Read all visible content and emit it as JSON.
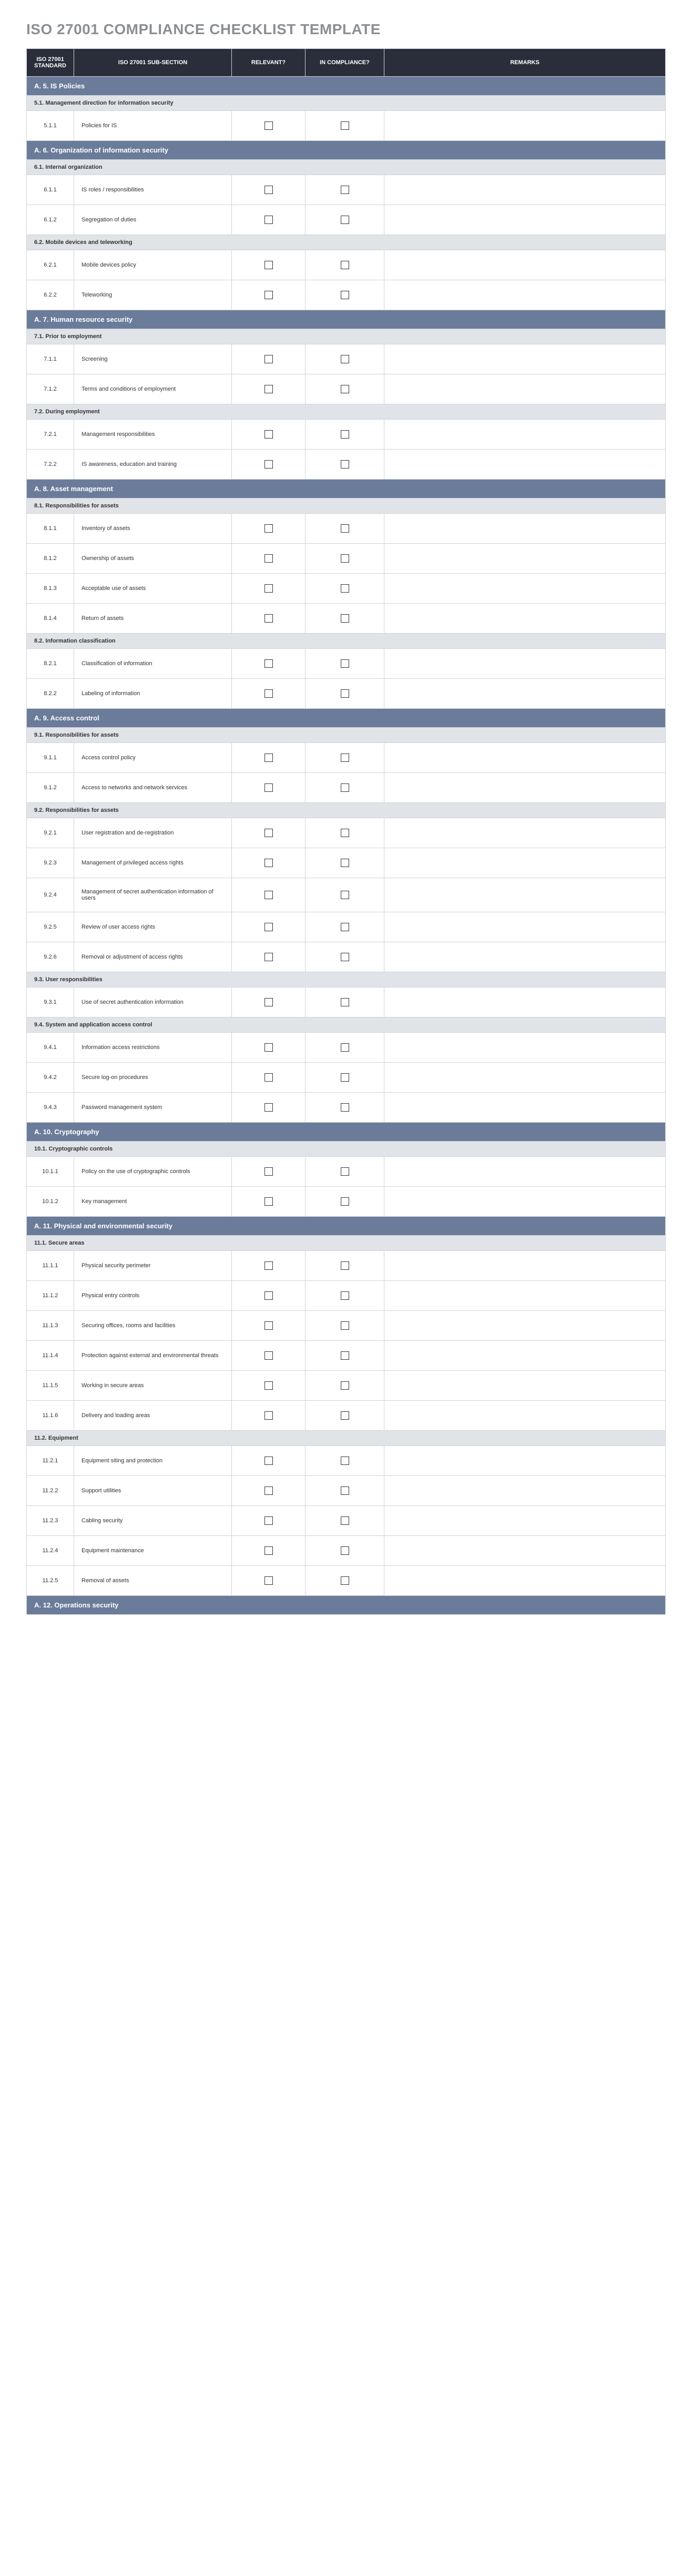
{
  "title": "ISO 27001 COMPLIANCE CHECKLIST TEMPLATE",
  "colors": {
    "header_bg": "#2a2e3b",
    "section_bg": "#6b7c9a",
    "subsection_bg": "#e0e3e8",
    "title_color": "#8a8f95",
    "border": "#d0d3d8"
  },
  "columns": {
    "std": "ISO 27001 STANDARD",
    "sub": "ISO 27001 SUB-SECTION",
    "rel": "RELEVANT?",
    "comp": "IN COMPLIANCE?",
    "rem": "REMARKS"
  },
  "sections": [
    {
      "title": "A. 5. IS Policies",
      "subsections": [
        {
          "title": "5.1. Management direction for information security",
          "items": [
            {
              "std": "5.1.1",
              "sub": "Policies for IS"
            }
          ]
        }
      ]
    },
    {
      "title": "A. 6. Organization of information security",
      "subsections": [
        {
          "title": "6.1. Internal organization",
          "items": [
            {
              "std": "6.1.1",
              "sub": "IS roles / responsibilities"
            },
            {
              "std": "6.1.2",
              "sub": "Segregation of duties"
            }
          ]
        },
        {
          "title": "6.2. Mobile devices and teleworking",
          "items": [
            {
              "std": "6.2.1",
              "sub": "Mobile devices policy"
            },
            {
              "std": "6.2.2",
              "sub": "Teleworking"
            }
          ]
        }
      ]
    },
    {
      "title": "A. 7. Human resource security",
      "subsections": [
        {
          "title": "7.1. Prior to employment",
          "items": [
            {
              "std": "7.1.1",
              "sub": "Screening"
            },
            {
              "std": "7.1.2",
              "sub": "Terms and conditions of employment"
            }
          ]
        },
        {
          "title": "7.2. During employment",
          "items": [
            {
              "std": "7.2.1",
              "sub": "Management responsibilities"
            },
            {
              "std": "7.2.2",
              "sub": "IS awareness, education and training"
            }
          ]
        }
      ]
    },
    {
      "title": "A. 8. Asset management",
      "subsections": [
        {
          "title": "8.1. Responsibilities for assets",
          "items": [
            {
              "std": "8.1.1",
              "sub": "Inventory of assets"
            },
            {
              "std": "8.1.2",
              "sub": "Ownership of assets"
            },
            {
              "std": "8.1.3",
              "sub": "Acceptable use of assets"
            },
            {
              "std": "8.1.4",
              "sub": "Return of assets"
            }
          ]
        },
        {
          "title": "8.2. Information classification",
          "items": [
            {
              "std": "8.2.1",
              "sub": "Classification of information"
            },
            {
              "std": "8.2.2",
              "sub": "Labeling of information"
            }
          ]
        }
      ]
    },
    {
      "title": "A. 9. Access control",
      "subsections": [
        {
          "title": "9.1. Responsibilities for assets",
          "items": [
            {
              "std": "9.1.1",
              "sub": "Access control policy"
            },
            {
              "std": "9.1.2",
              "sub": "Access to networks and network services"
            }
          ]
        },
        {
          "title": "9.2. Responsibilities for assets",
          "items": [
            {
              "std": "9.2.1",
              "sub": "User registration and de-registration"
            },
            {
              "std": "9.2.3",
              "sub": "Management of privileged access rights"
            },
            {
              "std": "9.2.4",
              "sub": "Management of secret authentication information of users"
            },
            {
              "std": "9.2.5",
              "sub": "Review of user access rights"
            },
            {
              "std": "9.2.6",
              "sub": "Removal or adjustment of access rights"
            }
          ]
        },
        {
          "title": "9.3. User responsibilities",
          "items": [
            {
              "std": "9.3.1",
              "sub": "Use of secret authentication information"
            }
          ]
        },
        {
          "title": "9.4. System and application access control",
          "items": [
            {
              "std": "9.4.1",
              "sub": "Information access restrictions"
            },
            {
              "std": "9.4.2",
              "sub": "Secure log-on procedures"
            },
            {
              "std": "9.4.3",
              "sub": "Password management system"
            }
          ]
        }
      ]
    },
    {
      "title": "A. 10. Cryptography",
      "subsections": [
        {
          "title": "10.1. Cryptographic controls",
          "items": [
            {
              "std": "10.1.1",
              "sub": "Policy on the use of cryptographic controls"
            },
            {
              "std": "10.1.2",
              "sub": "Key management"
            }
          ]
        }
      ]
    },
    {
      "title": "A. 11. Physical and environmental security",
      "subsections": [
        {
          "title": "11.1. Secure areas",
          "items": [
            {
              "std": "11.1.1",
              "sub": "Physical security perimeter"
            },
            {
              "std": "11.1.2",
              "sub": "Physical entry controls"
            },
            {
              "std": "11.1.3",
              "sub": "Securing offices, rooms and facilities"
            },
            {
              "std": "11.1.4",
              "sub": "Protection against external and environmental threats"
            },
            {
              "std": "11.1.5",
              "sub": "Working in secure areas"
            },
            {
              "std": "11.1.6",
              "sub": "Delivery and loading areas"
            }
          ]
        },
        {
          "title": "11.2. Equipment",
          "items": [
            {
              "std": "11.2.1",
              "sub": "Equipment siting and protection"
            },
            {
              "std": "11.2.2",
              "sub": "Support utilities"
            },
            {
              "std": "11.2.3",
              "sub": "Cabling security"
            },
            {
              "std": "11.2.4",
              "sub": "Equipment maintenance"
            },
            {
              "std": "11.2.5",
              "sub": "Removal of assets"
            }
          ]
        }
      ]
    },
    {
      "title": "A. 12. Operations security",
      "subsections": []
    }
  ]
}
